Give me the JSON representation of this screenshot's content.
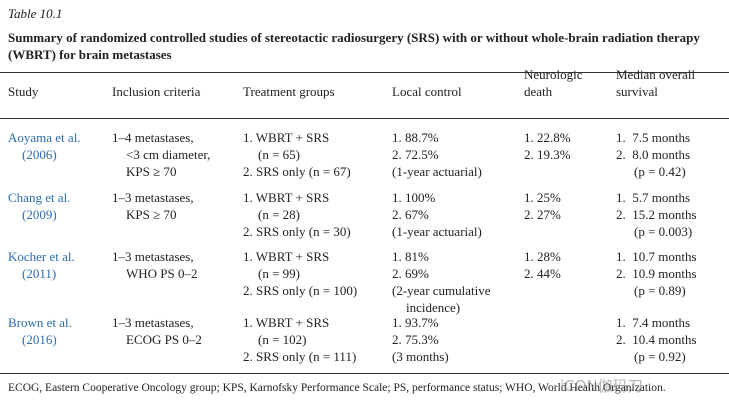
{
  "label": "Table 10.1",
  "title": [
    "Summary of randomized controlled studies of stereotactic radiosurgery (SRS) with or without whole-brain radiation therapy",
    "(WBRT) for brain metastases"
  ],
  "table": {
    "header": [
      [
        "Study"
      ],
      [
        "Inclusion criteria"
      ],
      [
        "Treatment groups"
      ],
      [
        "Local control"
      ],
      [
        "Neurologic",
        "death"
      ],
      [
        "Median overall",
        "survival"
      ]
    ],
    "rows": [
      [
        [
          "Aoyama et al.",
          "(2006)"
        ],
        [
          "1–4 metastases,",
          "<3 cm diameter,",
          "KPS ≥ 70"
        ],
        [
          "1. WBRT + SRS",
          "(n = 65)",
          "2. SRS only (n = 67)"
        ],
        [
          "1. 88.7%",
          "2. 72.5%",
          "(1-year actuarial)"
        ],
        [
          "1. 22.8%",
          "2. 19.3%"
        ],
        [
          "1.  7.5 months",
          "2.  8.0 months",
          "(p = 0.42)"
        ]
      ],
      [
        [
          "Chang et al.",
          "(2009)"
        ],
        [
          "1–3 metastases,",
          "KPS ≥ 70"
        ],
        [
          "1. WBRT + SRS",
          "(n = 28)",
          "2. SRS only (n = 30)"
        ],
        [
          "1. 100%",
          "2. 67%",
          "(1-year actuarial)"
        ],
        [
          "1. 25%",
          "2. 27%"
        ],
        [
          "1.  5.7 months",
          "2.  15.2 months",
          "(p = 0.003)"
        ]
      ],
      [
        [
          "Kocher et al.",
          "(2011)"
        ],
        [
          "1–3 metastases,",
          "WHO PS 0–2"
        ],
        [
          "1. WBRT + SRS",
          "(n = 99)",
          "2. SRS only (n = 100)"
        ],
        [
          "1. 81%",
          "2. 69%",
          "(2-year cumulative",
          "incidence)"
        ],
        [
          "1. 28%",
          "2. 44%"
        ],
        [
          "1.  10.7 months",
          "2.  10.9 months",
          "(p = 0.89)"
        ]
      ],
      [
        [
          "Brown et al.",
          "(2016)"
        ],
        [
          "1–3 metastases,",
          "ECOG PS 0–2"
        ],
        [
          "1. WBRT + SRS",
          "(n = 102)",
          "2. SRS only (n = 111)"
        ],
        [
          "1. 93.7%",
          "2. 75.3%",
          "(3 months)"
        ],
        [],
        [
          "1.  7.4 months",
          "2.  10.4 months",
          "(p = 0.92)"
        ]
      ]
    ]
  },
  "footnote": "ECOG, Eastern Cooperative Oncology group; KPS, Karnofsky Performance Scale; PS, performance status; WHO, World Health Organization.",
  "watermark": "iCON伽玛刀"
}
